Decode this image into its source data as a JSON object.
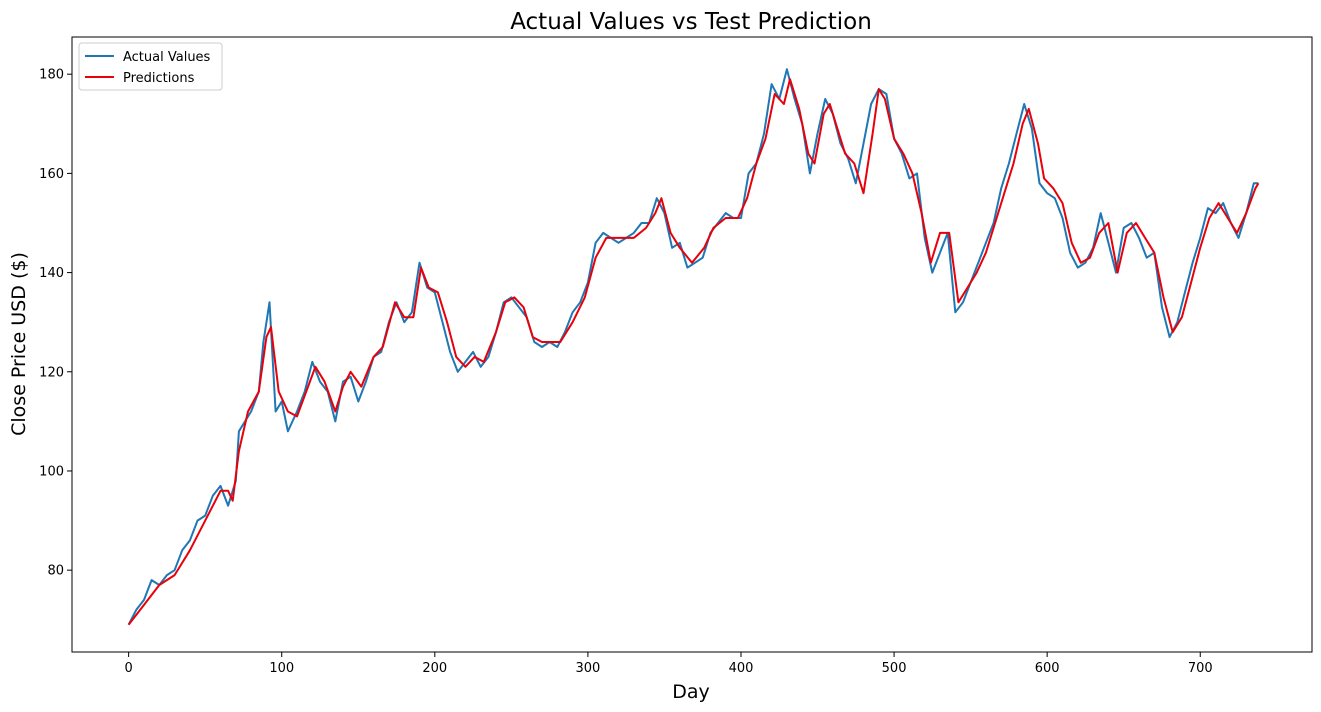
{
  "chart_data": {
    "type": "line",
    "title": "Actual Values vs Test Prediction",
    "xlabel": "Day",
    "ylabel": "Close Price USD ($)",
    "xlim": [
      -37,
      773
    ],
    "ylim": [
      63.5,
      187.5
    ],
    "xticks": [
      0,
      100,
      200,
      300,
      400,
      500,
      600,
      700
    ],
    "yticks": [
      80,
      100,
      120,
      140,
      160,
      180
    ],
    "grid": false,
    "legend_position": "top-left",
    "series": [
      {
        "name": "Actual Values",
        "color": "#1f77b4",
        "keypoints": [
          [
            0,
            69
          ],
          [
            5,
            72
          ],
          [
            10,
            74
          ],
          [
            15,
            78
          ],
          [
            20,
            77
          ],
          [
            25,
            79
          ],
          [
            30,
            80
          ],
          [
            35,
            84
          ],
          [
            40,
            86
          ],
          [
            45,
            90
          ],
          [
            50,
            91
          ],
          [
            55,
            95
          ],
          [
            60,
            97
          ],
          [
            65,
            93
          ],
          [
            70,
            98
          ],
          [
            72,
            108
          ],
          [
            80,
            112
          ],
          [
            85,
            116
          ],
          [
            88,
            126
          ],
          [
            92,
            134
          ],
          [
            96,
            112
          ],
          [
            100,
            114
          ],
          [
            104,
            108
          ],
          [
            110,
            112
          ],
          [
            115,
            116
          ],
          [
            120,
            122
          ],
          [
            125,
            118
          ],
          [
            130,
            116
          ],
          [
            135,
            110
          ],
          [
            140,
            118
          ],
          [
            145,
            119
          ],
          [
            150,
            114
          ],
          [
            155,
            118
          ],
          [
            160,
            123
          ],
          [
            165,
            124
          ],
          [
            170,
            130
          ],
          [
            175,
            134
          ],
          [
            180,
            130
          ],
          [
            185,
            132
          ],
          [
            190,
            142
          ],
          [
            195,
            137
          ],
          [
            200,
            136
          ],
          [
            205,
            130
          ],
          [
            210,
            124
          ],
          [
            215,
            120
          ],
          [
            220,
            122
          ],
          [
            225,
            124
          ],
          [
            230,
            121
          ],
          [
            235,
            123
          ],
          [
            240,
            128
          ],
          [
            245,
            134
          ],
          [
            250,
            135
          ],
          [
            255,
            133
          ],
          [
            260,
            131
          ],
          [
            265,
            126
          ],
          [
            270,
            125
          ],
          [
            275,
            126
          ],
          [
            280,
            125
          ],
          [
            285,
            128
          ],
          [
            290,
            132
          ],
          [
            295,
            134
          ],
          [
            300,
            138
          ],
          [
            305,
            146
          ],
          [
            310,
            148
          ],
          [
            315,
            147
          ],
          [
            320,
            146
          ],
          [
            325,
            147
          ],
          [
            330,
            148
          ],
          [
            335,
            150
          ],
          [
            340,
            150
          ],
          [
            345,
            155
          ],
          [
            350,
            152
          ],
          [
            355,
            145
          ],
          [
            360,
            146
          ],
          [
            365,
            141
          ],
          [
            370,
            142
          ],
          [
            375,
            143
          ],
          [
            380,
            148
          ],
          [
            385,
            150
          ],
          [
            390,
            152
          ],
          [
            395,
            151
          ],
          [
            400,
            151
          ],
          [
            405,
            160
          ],
          [
            410,
            162
          ],
          [
            415,
            168
          ],
          [
            420,
            178
          ],
          [
            425,
            175
          ],
          [
            430,
            181
          ],
          [
            435,
            175
          ],
          [
            440,
            170
          ],
          [
            445,
            160
          ],
          [
            450,
            168
          ],
          [
            455,
            175
          ],
          [
            460,
            172
          ],
          [
            465,
            166
          ],
          [
            470,
            163
          ],
          [
            475,
            158
          ],
          [
            480,
            166
          ],
          [
            485,
            174
          ],
          [
            490,
            177
          ],
          [
            495,
            176
          ],
          [
            500,
            167
          ],
          [
            505,
            164
          ],
          [
            510,
            159
          ],
          [
            515,
            160
          ],
          [
            520,
            147
          ],
          [
            525,
            140
          ],
          [
            530,
            144
          ],
          [
            535,
            148
          ],
          [
            540,
            132
          ],
          [
            545,
            134
          ],
          [
            550,
            138
          ],
          [
            555,
            142
          ],
          [
            560,
            146
          ],
          [
            565,
            150
          ],
          [
            570,
            157
          ],
          [
            575,
            162
          ],
          [
            580,
            168
          ],
          [
            585,
            174
          ],
          [
            590,
            169
          ],
          [
            595,
            158
          ],
          [
            600,
            156
          ],
          [
            605,
            155
          ],
          [
            610,
            151
          ],
          [
            615,
            144
          ],
          [
            620,
            141
          ],
          [
            625,
            142
          ],
          [
            630,
            145
          ],
          [
            635,
            152
          ],
          [
            640,
            146
          ],
          [
            645,
            140
          ],
          [
            650,
            149
          ],
          [
            655,
            150
          ],
          [
            660,
            147
          ],
          [
            665,
            143
          ],
          [
            670,
            144
          ],
          [
            675,
            133
          ],
          [
            680,
            127
          ],
          [
            685,
            130
          ],
          [
            690,
            136
          ],
          [
            695,
            142
          ],
          [
            700,
            147
          ],
          [
            705,
            153
          ],
          [
            710,
            152
          ],
          [
            715,
            154
          ],
          [
            720,
            150
          ],
          [
            725,
            147
          ],
          [
            730,
            152
          ],
          [
            735,
            158
          ],
          [
            738,
            158
          ]
        ]
      },
      {
        "name": "Predictions",
        "color": "#e8000b",
        "keypoints": [
          [
            0,
            69
          ],
          [
            10,
            73
          ],
          [
            20,
            77
          ],
          [
            30,
            79
          ],
          [
            40,
            84
          ],
          [
            50,
            90
          ],
          [
            60,
            96
          ],
          [
            65,
            96
          ],
          [
            68,
            94
          ],
          [
            72,
            104
          ],
          [
            78,
            112
          ],
          [
            85,
            116
          ],
          [
            90,
            127
          ],
          [
            93,
            129
          ],
          [
            98,
            116
          ],
          [
            104,
            112
          ],
          [
            110,
            111
          ],
          [
            116,
            116
          ],
          [
            122,
            121
          ],
          [
            128,
            118
          ],
          [
            135,
            112
          ],
          [
            140,
            117
          ],
          [
            145,
            120
          ],
          [
            152,
            117
          ],
          [
            160,
            123
          ],
          [
            166,
            125
          ],
          [
            174,
            134
          ],
          [
            180,
            131
          ],
          [
            186,
            131
          ],
          [
            191,
            141
          ],
          [
            196,
            137
          ],
          [
            202,
            136
          ],
          [
            208,
            130
          ],
          [
            214,
            123
          ],
          [
            220,
            121
          ],
          [
            226,
            123
          ],
          [
            232,
            122
          ],
          [
            240,
            128
          ],
          [
            246,
            134
          ],
          [
            252,
            135
          ],
          [
            258,
            133
          ],
          [
            264,
            127
          ],
          [
            270,
            126
          ],
          [
            276,
            126
          ],
          [
            282,
            126
          ],
          [
            290,
            130
          ],
          [
            298,
            135
          ],
          [
            305,
            143
          ],
          [
            312,
            147
          ],
          [
            320,
            147
          ],
          [
            330,
            147
          ],
          [
            338,
            149
          ],
          [
            344,
            152
          ],
          [
            348,
            155
          ],
          [
            354,
            148
          ],
          [
            360,
            145
          ],
          [
            368,
            142
          ],
          [
            376,
            145
          ],
          [
            382,
            149
          ],
          [
            390,
            151
          ],
          [
            398,
            151
          ],
          [
            404,
            155
          ],
          [
            410,
            162
          ],
          [
            416,
            167
          ],
          [
            422,
            176
          ],
          [
            428,
            174
          ],
          [
            432,
            179
          ],
          [
            438,
            173
          ],
          [
            444,
            164
          ],
          [
            448,
            162
          ],
          [
            454,
            172
          ],
          [
            458,
            174
          ],
          [
            462,
            170
          ],
          [
            468,
            164
          ],
          [
            474,
            162
          ],
          [
            480,
            156
          ],
          [
            486,
            168
          ],
          [
            490,
            177
          ],
          [
            494,
            175
          ],
          [
            500,
            167
          ],
          [
            506,
            164
          ],
          [
            512,
            160
          ],
          [
            518,
            152
          ],
          [
            524,
            142
          ],
          [
            530,
            148
          ],
          [
            536,
            148
          ],
          [
            542,
            134
          ],
          [
            548,
            137
          ],
          [
            554,
            140
          ],
          [
            560,
            144
          ],
          [
            566,
            150
          ],
          [
            572,
            156
          ],
          [
            578,
            162
          ],
          [
            584,
            170
          ],
          [
            588,
            173
          ],
          [
            594,
            166
          ],
          [
            598,
            159
          ],
          [
            604,
            157
          ],
          [
            610,
            154
          ],
          [
            616,
            146
          ],
          [
            622,
            142
          ],
          [
            628,
            143
          ],
          [
            634,
            148
          ],
          [
            640,
            150
          ],
          [
            646,
            140
          ],
          [
            652,
            148
          ],
          [
            658,
            150
          ],
          [
            664,
            147
          ],
          [
            670,
            144
          ],
          [
            676,
            135
          ],
          [
            682,
            128
          ],
          [
            688,
            131
          ],
          [
            694,
            138
          ],
          [
            700,
            145
          ],
          [
            706,
            151
          ],
          [
            712,
            154
          ],
          [
            718,
            151
          ],
          [
            724,
            148
          ],
          [
            730,
            152
          ],
          [
            736,
            157
          ],
          [
            738,
            158
          ]
        ]
      }
    ]
  }
}
